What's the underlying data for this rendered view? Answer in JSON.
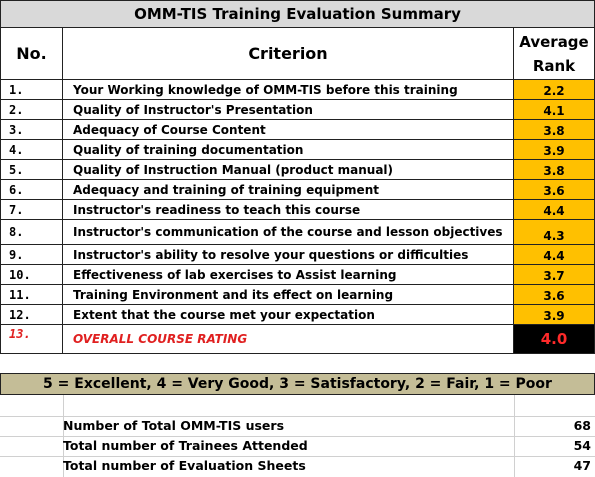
{
  "title": "OMM-TIS Training Evaluation Summary",
  "headers": {
    "no": "No.",
    "criterion": "Criterion",
    "rank_line1": "Average",
    "rank_line2": "Rank"
  },
  "rows": [
    {
      "no": "1.",
      "criterion": "Your Working knowledge of OMM-TIS before this training",
      "rank": "2.2"
    },
    {
      "no": "2.",
      "criterion": "Quality of Instructor's Presentation",
      "rank": "4.1"
    },
    {
      "no": "3.",
      "criterion": "Adequacy of Course Content",
      "rank": "3.8"
    },
    {
      "no": "4.",
      "criterion": "Quality of training documentation",
      "rank": "3.9"
    },
    {
      "no": "5.",
      "criterion": "Quality of Instruction Manual (product manual)",
      "rank": "3.8"
    },
    {
      "no": "6.",
      "criterion": "Adequacy and training of training equipment",
      "rank": "3.6"
    },
    {
      "no": "7.",
      "criterion": "Instructor's readiness to teach this course",
      "rank": "4.4"
    },
    {
      "no": "8.",
      "criterion": "Instructor's communication of the course and lesson objectives",
      "rank": "4.3"
    },
    {
      "no": "9.",
      "criterion": "Instructor's ability to resolve your questions or difficulties",
      "rank": "4.4"
    },
    {
      "no": "10.",
      "criterion": "Effectiveness of lab exercises to Assist learning",
      "rank": "3.7"
    },
    {
      "no": "11.",
      "criterion": "Training Environment and its effect on learning",
      "rank": "3.6"
    },
    {
      "no": "12.",
      "criterion": "Extent that the course met your expectation",
      "rank": "3.9"
    }
  ],
  "overall": {
    "no": "13.",
    "criterion": "OVERALL COURSE RATING",
    "rank": "4.0"
  },
  "legend": "5 = Excellent, 4 = Very Good,  3 = Satisfactory, 2 = Fair, 1 = Poor",
  "totals": [
    {
      "label": "Number of Total OMM-TIS users",
      "value": "68"
    },
    {
      "label": "Total number of Trainees Attended",
      "value": "54"
    },
    {
      "label": "Total number of Evaluation Sheets",
      "value": "47"
    }
  ],
  "colors": {
    "title_bg": "#d9d9d9",
    "rank_bg": "#ffc000",
    "overall_bg": "#000000",
    "overall_text": "#ff2a2a",
    "legend_bg": "#c4bd97"
  }
}
